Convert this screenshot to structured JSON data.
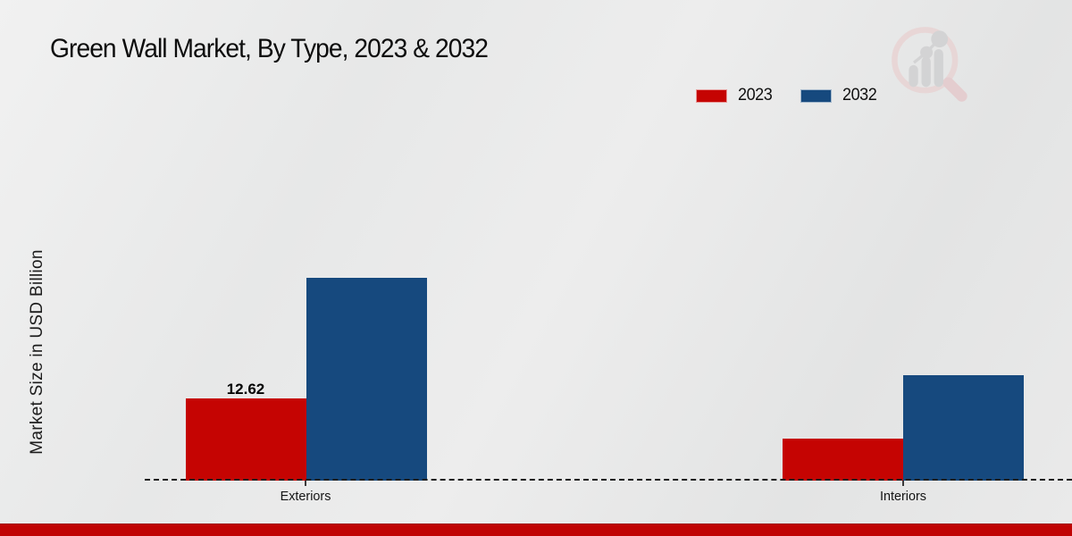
{
  "title": "Green Wall Market, By Type, 2023 & 2032",
  "ylabel": "Market Size in USD Billion",
  "colors": {
    "series_2023": "#c50402",
    "series_2032": "#16497e",
    "footer": "#c00404",
    "baseline": "#1f1f1f"
  },
  "chart_data": {
    "type": "bar",
    "title": "Green Wall Market, By Type, 2023 & 2032",
    "categories": [
      "Exteriors",
      "Interiors"
    ],
    "series": [
      {
        "name": "2023",
        "color": "#c50402",
        "values": [
          12.62,
          6.4
        ]
      },
      {
        "name": "2032",
        "color": "#16497e",
        "values": [
          31.1,
          16.2
        ]
      }
    ],
    "xlabel": "",
    "ylabel": "Market Size in USD Billion",
    "ylim": [
      0,
      35
    ],
    "grid": "off",
    "baseline_style": "dashed",
    "legend_position": "top-right",
    "annotations": [
      {
        "text": "12.62",
        "target": "Exteriors 2023 bar"
      }
    ]
  },
  "watermark": {
    "name": "market-research-magnifier-logo"
  }
}
